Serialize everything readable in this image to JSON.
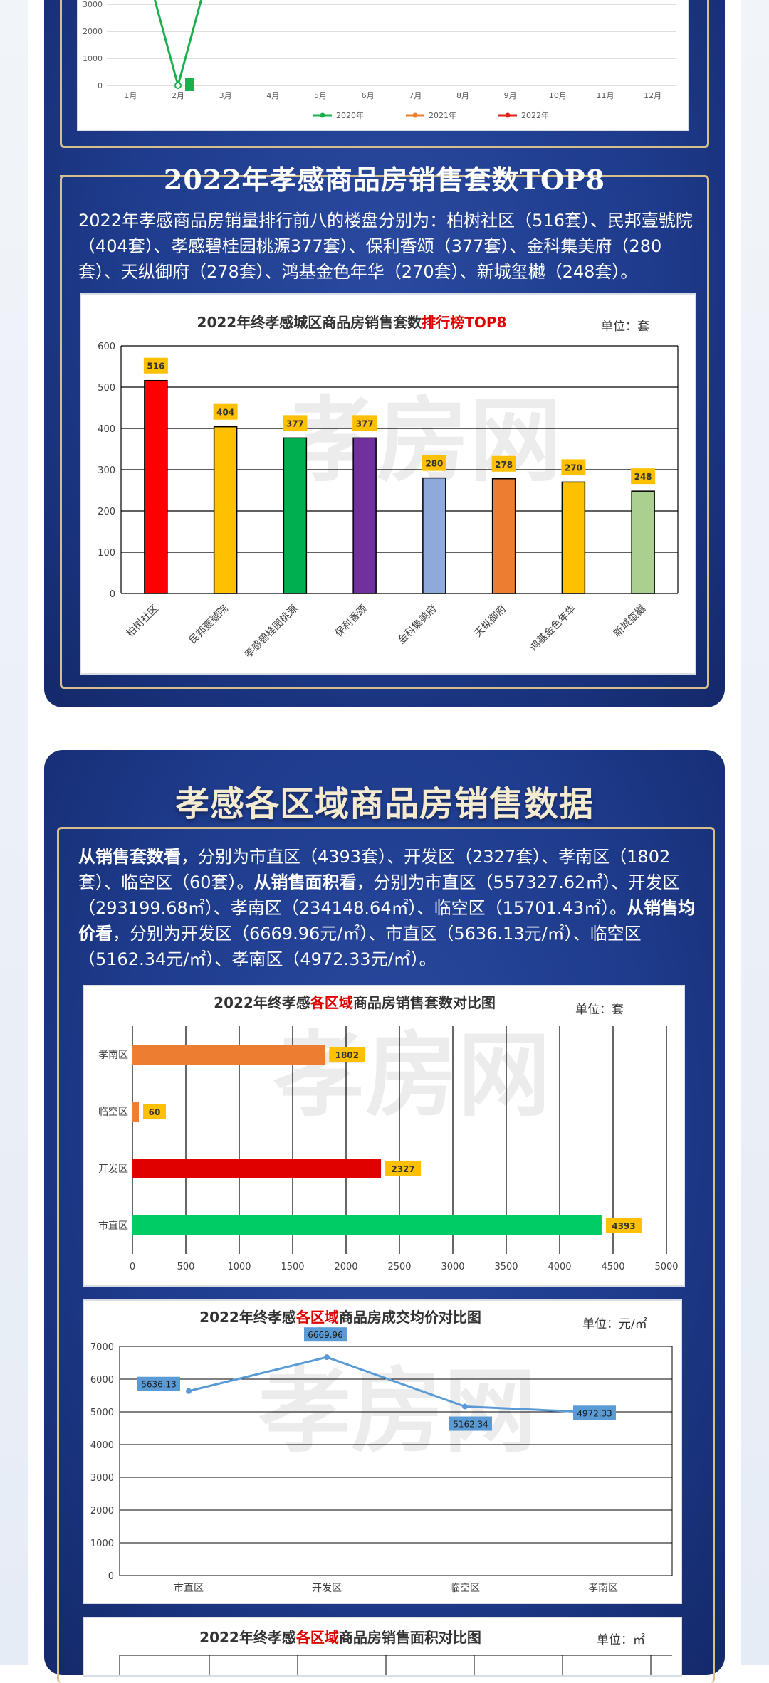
{
  "section1": {
    "title": "2022年孝感商品房销售套数TOP8",
    "paragraph": "2022年孝感商品房销量排行前八的楼盘分别为：柏树社区（516套）、民邦壹號院（404套）、孝感碧桂园桃源377套）、保利香颂（377套）、金科集美府（280套）、天纵御府（278套）、鸿基金色年华（270套）、新城玺樾（248套）。"
  },
  "section2": {
    "title": "孝感各区域商品房销售数据",
    "p_bold1": "从销售套数看",
    "p_text1": "，分别为市直区（4393套）、开发区（2327套）、孝南区（1802套）、临空区（60套）。",
    "p_bold2": "从销售面积看",
    "p_text2": "，分别为市直区（557327.62㎡）、开发区（293199.68㎡）、孝南区（234148.64㎡）、临空区（15701.43㎡）。",
    "p_bold3": "从销售均价看",
    "p_text3": "，分别为开发区（6669.96元/㎡）、市直区（5636.13元/㎡）、临空区（5162.34元/㎡）、孝南区（4972.33元/㎡）。"
  },
  "watermark": "孝房网",
  "chart_data": [
    {
      "type": "line",
      "categories": [
        "1月",
        "2月",
        "3月",
        "4月",
        "5月",
        "6月",
        "7月",
        "8月",
        "9月",
        "10月",
        "11月",
        "12月"
      ],
      "y_ticks": [
        "0",
        "1000",
        "2000",
        "3000"
      ],
      "series": [
        {
          "name": "2020年",
          "color": "#1daf4d"
        },
        {
          "name": "2021年",
          "color": "#ef7d2b"
        },
        {
          "name": "2022年",
          "color": "#e0201b"
        }
      ],
      "note": "only partially visible (top clipped)"
    },
    {
      "type": "bar",
      "title_prefix": "2022年终孝感城区商品房销售套数",
      "title_highlight": "排行榜TOP8",
      "unit": "单位：套",
      "categories": [
        "柏树社区",
        "民邦壹號院",
        "孝感碧桂园桃源",
        "保利香颂",
        "金科集美府",
        "天纵御府",
        "鸿基金色年华",
        "新城玺樾"
      ],
      "values": [
        516,
        404,
        377,
        377,
        280,
        278,
        270,
        248
      ],
      "colors": [
        "#ff0000",
        "#ffc000",
        "#00b050",
        "#7030a0",
        "#8eaadb",
        "#ed7d31",
        "#ffc000",
        "#a9d08e"
      ],
      "ylim": [
        0,
        600
      ],
      "y_ticks": [
        "0",
        "100",
        "200",
        "300",
        "400",
        "500",
        "600"
      ]
    },
    {
      "type": "bar",
      "orientation": "horizontal",
      "title_prefix": "2022年终孝感",
      "title_highlight": "各区域",
      "title_suffix": "商品房销售套数对比图",
      "unit": "单位：套",
      "categories": [
        "孝南区",
        "临空区",
        "开发区",
        "市直区"
      ],
      "values": [
        1802,
        60,
        2327,
        4393
      ],
      "colors": [
        "#ed7d31",
        "#ed7d31",
        "#e00000",
        "#00cc66"
      ],
      "xlim": [
        0,
        5000
      ],
      "x_ticks": [
        "0",
        "500",
        "1000",
        "1500",
        "2000",
        "2500",
        "3000",
        "3500",
        "4000",
        "4500",
        "5000"
      ]
    },
    {
      "type": "line",
      "title_prefix": "2022年终孝感",
      "title_highlight": "各区域",
      "title_suffix": "商品房成交均价对比图",
      "unit": "单位：元/㎡",
      "categories": [
        "市直区",
        "开发区",
        "临空区",
        "孝南区"
      ],
      "values": [
        5636.13,
        6669.96,
        5162.34,
        4972.33
      ],
      "labels": [
        "5636.13",
        "6669.96",
        "5162.34",
        "4972.33"
      ],
      "ylim": [
        0,
        7000
      ],
      "y_ticks": [
        "0",
        "1000",
        "2000",
        "3000",
        "4000",
        "5000",
        "6000",
        "7000"
      ],
      "color": "#5b9bd5"
    },
    {
      "type": "bar",
      "title_prefix": "2022年终孝感",
      "title_highlight": "各区域",
      "title_suffix": "商品房销售面积对比图",
      "unit": "单位：㎡",
      "note": "cut off at bottom"
    }
  ]
}
